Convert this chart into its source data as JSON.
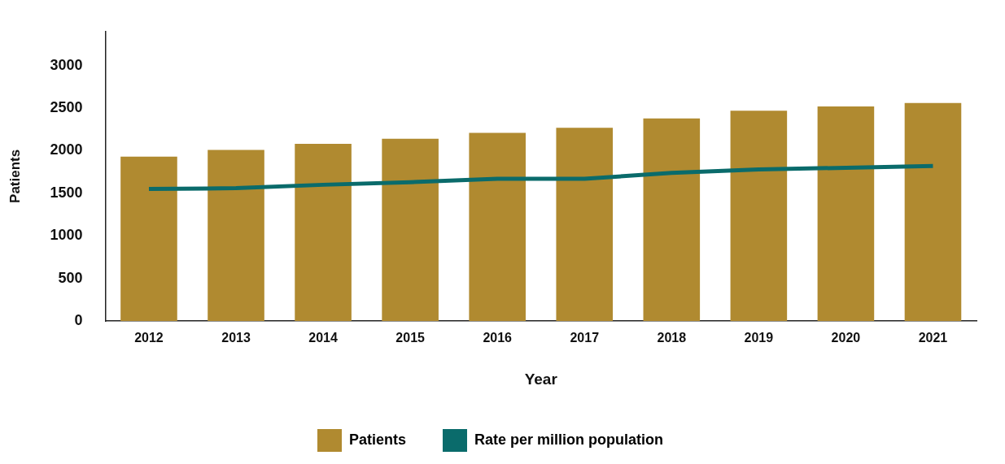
{
  "chart_data": {
    "type": "bar",
    "xlabel": "Year",
    "ylabel": "Patients",
    "categories": [
      "2012",
      "2013",
      "2014",
      "2015",
      "2016",
      "2017",
      "2018",
      "2019",
      "2020",
      "2021"
    ],
    "series": [
      {
        "name": "Patients",
        "color": "#b08a30",
        "values": [
          1930,
          2010,
          2080,
          2140,
          2210,
          2270,
          2380,
          2470,
          2520,
          2560
        ]
      },
      {
        "name": "Rate per million population",
        "type": "line",
        "color": "#0a6b6b",
        "values": [
          1550,
          1560,
          1600,
          1630,
          1670,
          1670,
          1740,
          1780,
          1800,
          1820
        ]
      }
    ],
    "ylim": [
      0,
      3400
    ],
    "yticks": [
      0,
      500,
      1000,
      1500,
      2000,
      2500,
      3000
    ],
    "grid": false,
    "legend": "bottom",
    "marker": "none"
  }
}
